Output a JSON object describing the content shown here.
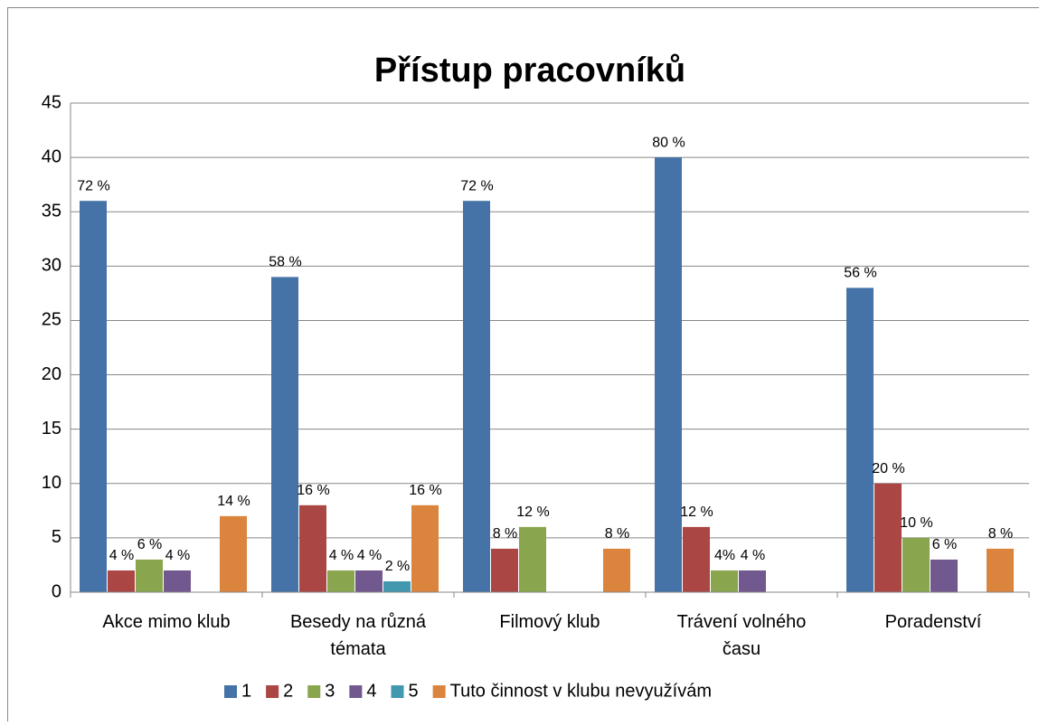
{
  "chart_data": {
    "type": "bar",
    "title": "Přístup pracovníků",
    "categories": [
      "Akce mimo klub",
      "Besedy na různá témata",
      "Filmový klub",
      "Trávení volného času",
      "Poradenství"
    ],
    "series": [
      {
        "name": "1",
        "color": "#4572a7",
        "values": [
          36,
          29,
          36,
          40,
          28
        ],
        "percent_labels": [
          "72 %",
          "58 %",
          "72 %",
          "80 %",
          "56 %"
        ]
      },
      {
        "name": "2",
        "color": "#aa4643",
        "values": [
          2,
          8,
          4,
          6,
          10
        ],
        "percent_labels": [
          "4 %",
          "16 %",
          "8 %",
          "12 %",
          "20 %"
        ]
      },
      {
        "name": "3",
        "color": "#89a54e",
        "values": [
          3,
          2,
          6,
          2,
          5
        ],
        "percent_labels": [
          "6 %",
          "4 %",
          "12 %",
          "4%",
          "10 %"
        ]
      },
      {
        "name": "4",
        "color": "#71588f",
        "values": [
          2,
          2,
          null,
          2,
          3
        ],
        "percent_labels": [
          "4 %",
          "4 %",
          null,
          "4 %",
          "6 %"
        ]
      },
      {
        "name": "5",
        "color": "#4198af",
        "values": [
          null,
          1,
          null,
          null,
          null
        ],
        "percent_labels": [
          null,
          "2 %",
          null,
          null,
          null
        ]
      },
      {
        "name": "Tuto činnost v klubu nevyužívám",
        "color": "#db843d",
        "values": [
          7,
          8,
          4,
          null,
          4
        ],
        "percent_labels": [
          "14 %",
          "16 %",
          "8 %",
          null,
          "8 %"
        ]
      }
    ],
    "ylim": [
      0,
      45
    ],
    "yticks": [
      0,
      5,
      10,
      15,
      20,
      25,
      30,
      35,
      40,
      45
    ],
    "grid": true,
    "legend": "bottom"
  }
}
